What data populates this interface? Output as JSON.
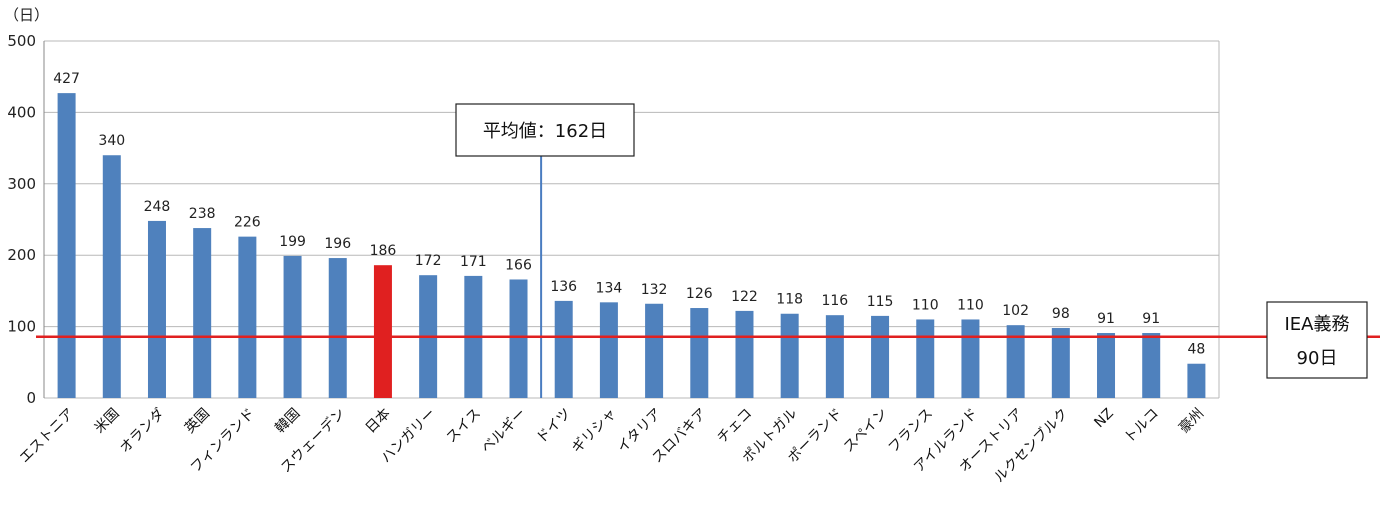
{
  "chart_data": {
    "type": "bar",
    "y_unit_label": "（日）",
    "ylim": [
      0,
      500
    ],
    "yticks": [
      0,
      100,
      200,
      300,
      400,
      500
    ],
    "grid": true,
    "categories": [
      "エストニア",
      "米国",
      "オランダ",
      "英国",
      "フィンランド",
      "韓国",
      "スウェーデン",
      "日本",
      "ハンガリー",
      "スイス",
      "ベルギー",
      "ドイツ",
      "ギリシャ",
      "イタリア",
      "スロバキア",
      "チェコ",
      "ポルトガル",
      "ポーランド",
      "スペイン",
      "フランス",
      "アイルランド",
      "オーストリア",
      "ルクセンブルク",
      "NZ",
      "トルコ",
      "豪州"
    ],
    "values": [
      427,
      340,
      248,
      238,
      226,
      199,
      196,
      186,
      172,
      171,
      166,
      136,
      134,
      132,
      126,
      122,
      118,
      116,
      115,
      110,
      110,
      102,
      98,
      91,
      91,
      48
    ],
    "colors": {
      "bar": "#4f81bd",
      "highlight": "#e02020",
      "reference_line": "#e02020",
      "average_line": "#4a7cc0"
    },
    "highlight_category": "日本",
    "average": {
      "value": 162,
      "label": "平均値：162日",
      "after_category": "ベルギー"
    },
    "reference": {
      "value": 90,
      "label_line1": "IEA義務",
      "label_line2": "90日"
    }
  }
}
